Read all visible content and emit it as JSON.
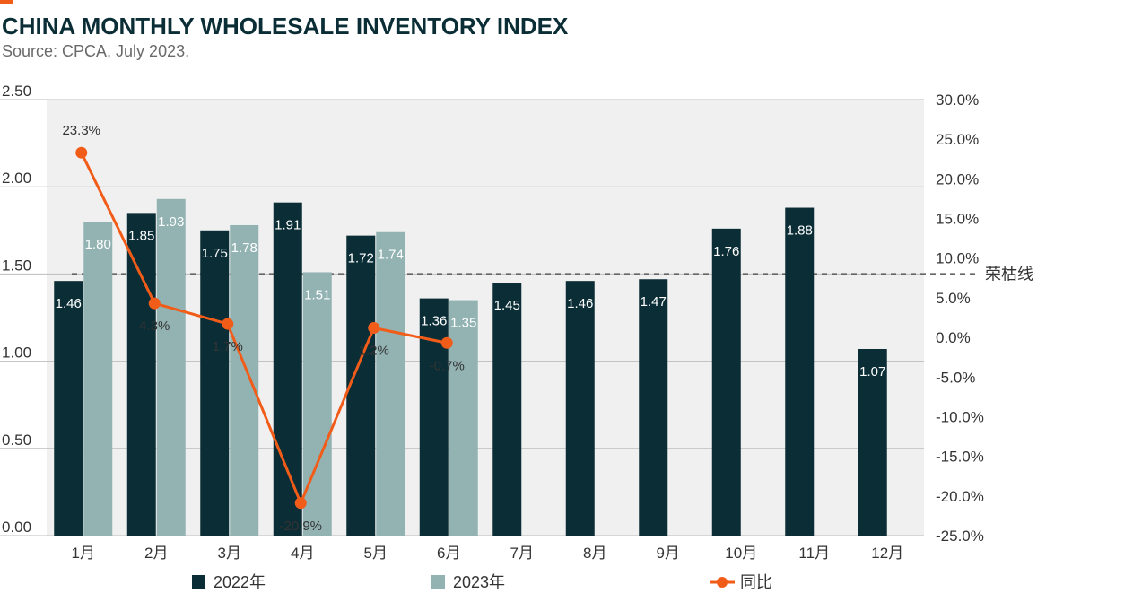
{
  "header": {
    "title": "CHINA MONTHLY WHOLESALE INVENTORY INDEX",
    "subtitle": "Source: CPCA, July 2023."
  },
  "colors": {
    "accent": "#f25c19",
    "series_2022": "#0b2e36",
    "series_2023": "#93b3b3",
    "yoy_line": "#f25c19",
    "plot_bg": "#f0f0f0",
    "gridline": "#bdbdbd",
    "reference_line": "#666666"
  },
  "chart_data": {
    "type": "bar",
    "categories": [
      "1月",
      "2月",
      "3月",
      "4月",
      "5月",
      "6月",
      "7月",
      "8月",
      "9月",
      "10月",
      "11月",
      "12月"
    ],
    "series": [
      {
        "name": "2022年",
        "type": "bar",
        "axis": "left",
        "values": [
          1.46,
          1.85,
          1.75,
          1.91,
          1.72,
          1.36,
          1.45,
          1.46,
          1.47,
          1.76,
          1.88,
          1.07
        ],
        "labels": [
          "1.46",
          "1.85",
          "1.75",
          "1.91",
          "1.72",
          "1.36",
          "1.45",
          "1.46",
          "1.47",
          "1.76",
          "1.88",
          "1.07"
        ]
      },
      {
        "name": "2023年",
        "type": "bar",
        "axis": "left",
        "values": [
          1.8,
          1.93,
          1.78,
          1.51,
          1.74,
          1.35,
          null,
          null,
          null,
          null,
          null,
          null
        ],
        "labels": [
          "1.80",
          "1.93",
          "1.78",
          "1.51",
          "1.74",
          "1.35"
        ]
      },
      {
        "name": "同比",
        "type": "line",
        "axis": "right",
        "values": [
          23.3,
          4.3,
          1.7,
          -20.9,
          1.2,
          -0.7,
          null,
          null,
          null,
          null,
          null,
          null
        ],
        "labels": [
          "23.3%",
          "4.3%",
          "1.7%",
          "-20.9%",
          "1.2%",
          "-0.7%"
        ]
      }
    ],
    "y_left": {
      "range": [
        0,
        2.5
      ],
      "ticks": [
        "0.00",
        "0.50",
        "1.00",
        "1.50",
        "2.00",
        "2.50"
      ],
      "tick_values": [
        0,
        0.5,
        1.0,
        1.5,
        2.0,
        2.5
      ]
    },
    "y_right": {
      "range": [
        -25,
        30
      ],
      "ticks": [
        "-25.0%",
        "-20.0%",
        "-15.0%",
        "-10.0%",
        "-5.0%",
        "0.0%",
        "5.0%",
        "10.0%",
        "15.0%",
        "20.0%",
        "25.0%",
        "30.0%"
      ],
      "tick_values": [
        -25,
        -20,
        -15,
        -10,
        -5,
        0,
        5,
        10,
        15,
        20,
        25,
        30
      ]
    },
    "reference_line": {
      "value": 1.5,
      "axis": "left",
      "label": "荣枯线",
      "style": "dashed"
    },
    "grid": true,
    "legend_position": "bottom"
  }
}
